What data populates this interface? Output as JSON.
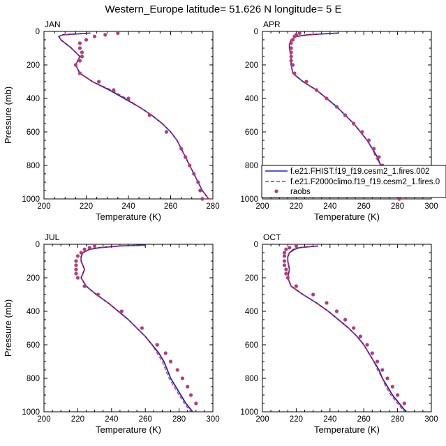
{
  "figure": {
    "title": "Western_Europe  latitude= 51.626 N longitude= 5 E"
  },
  "legend": {
    "entries": [
      {
        "label": "f.e21.FHIST.f19_f19.cesm2_1.fires.002",
        "color": "#1f1fd6",
        "style": "solid"
      },
      {
        "label": "f.e21.F2000climo.f19_f19.cesm2_1.fires.0",
        "color": "#e8231f",
        "style": "dashed"
      },
      {
        "label": "raobs",
        "color": "#b43c78",
        "style": "marker"
      }
    ]
  },
  "chart_data": [
    {
      "type": "line",
      "panel": "JAN",
      "xlabel": "Temperature (K)",
      "ylabel": "Pressure (mb)",
      "xlim": [
        200,
        280
      ],
      "ylim": [
        1000,
        0
      ],
      "xticks": [
        200,
        220,
        240,
        260,
        280
      ],
      "yticks": [
        0,
        200,
        400,
        600,
        800,
        1000
      ],
      "series": [
        {
          "key": "fhist",
          "pressure": [
            10,
            20,
            30,
            50,
            100,
            150,
            200,
            250,
            300,
            350,
            400,
            450,
            500,
            550,
            600,
            650,
            700,
            750,
            800,
            850,
            900,
            950,
            1000
          ],
          "temperature": [
            222,
            209,
            207,
            208,
            213,
            217,
            215,
            217,
            223,
            231,
            238,
            245,
            251,
            256,
            260,
            263,
            265,
            267,
            269,
            271,
            273,
            275,
            278
          ]
        },
        {
          "key": "f2000",
          "pressure": [
            10,
            20,
            30,
            50,
            100,
            150,
            200,
            250,
            300,
            350,
            400,
            450,
            500,
            550,
            600,
            650,
            700,
            750,
            800,
            850,
            900,
            950,
            1000
          ],
          "temperature": [
            222,
            209,
            207,
            208,
            213,
            217,
            215,
            217,
            223,
            232,
            239,
            245,
            251,
            256,
            260,
            263,
            265,
            267,
            269,
            271,
            273,
            275,
            278
          ]
        },
        {
          "key": "raobs",
          "pressure": [
            10,
            20,
            30,
            50,
            70,
            100,
            125,
            150,
            175,
            200,
            250,
            300,
            350,
            400,
            500,
            600,
            700,
            750,
            800,
            850,
            900,
            950,
            1000
          ],
          "temperature": [
            235,
            229,
            224,
            220,
            217,
            217,
            218,
            218,
            217,
            215,
            217,
            226,
            233,
            240,
            250,
            258,
            265,
            267,
            269,
            271,
            273,
            274,
            275
          ]
        }
      ]
    },
    {
      "type": "line",
      "panel": "APR",
      "xlabel": "Temperature (K)",
      "ylabel": "",
      "xlim": [
        200,
        300
      ],
      "ylim": [
        1000,
        0
      ],
      "xticks": [
        200,
        220,
        240,
        260,
        280,
        300
      ],
      "yticks": [
        0,
        200,
        400,
        600,
        800,
        1000
      ],
      "series": [
        {
          "key": "fhist",
          "pressure": [
            10,
            15,
            20,
            30,
            50,
            75,
            100,
            150,
            200,
            250,
            300,
            350,
            400,
            450,
            500,
            550,
            600,
            650,
            700,
            750,
            800,
            850,
            900,
            950,
            1000
          ],
          "temperature": [
            245,
            235,
            227,
            220,
            217,
            216,
            216,
            217,
            217,
            218,
            224,
            232,
            238,
            244,
            249,
            254,
            258,
            262,
            265,
            268,
            270,
            273,
            276,
            279,
            282
          ]
        },
        {
          "key": "f2000",
          "pressure": [
            10,
            15,
            20,
            30,
            50,
            75,
            100,
            150,
            200,
            250,
            300,
            350,
            400,
            450,
            500,
            550,
            600,
            650,
            700,
            750,
            800,
            850,
            900,
            950,
            1000
          ],
          "temperature": [
            244,
            234,
            226,
            220,
            217,
            216,
            216,
            217,
            217,
            218,
            224,
            232,
            238,
            244,
            249,
            254,
            258,
            262,
            265,
            267,
            270,
            272,
            275,
            278,
            281
          ]
        },
        {
          "key": "raobs",
          "pressure": [
            10,
            20,
            30,
            50,
            70,
            100,
            125,
            150,
            175,
            200,
            250,
            300,
            350,
            400,
            450,
            500,
            550,
            600,
            650,
            700,
            750,
            800,
            850,
            900,
            950,
            1000
          ],
          "temperature": [
            222,
            220,
            219,
            218,
            217,
            217,
            217,
            217,
            217,
            218,
            219,
            226,
            232,
            238,
            244,
            249,
            254,
            259,
            263,
            266,
            269,
            271,
            273,
            276,
            279,
            281
          ]
        }
      ]
    },
    {
      "type": "line",
      "panel": "JUL",
      "xlabel": "Temperature (K)",
      "ylabel": "Pressure (mb)",
      "xlim": [
        200,
        300
      ],
      "ylim": [
        1000,
        0
      ],
      "xticks": [
        200,
        220,
        240,
        260,
        280,
        300
      ],
      "yticks": [
        0,
        200,
        400,
        600,
        800,
        1000
      ],
      "series": [
        {
          "key": "fhist",
          "pressure": [
            5,
            10,
            20,
            30,
            50,
            75,
            100,
            150,
            200,
            250,
            300,
            350,
            400,
            450,
            500,
            550,
            600,
            650,
            700,
            750,
            800,
            850,
            900,
            950,
            1000
          ],
          "temperature": [
            260,
            245,
            233,
            227,
            223,
            222,
            222,
            224,
            222,
            225,
            231,
            238,
            244,
            250,
            255,
            260,
            264,
            268,
            271,
            273,
            275,
            278,
            281,
            284,
            288
          ]
        },
        {
          "key": "f2000",
          "pressure": [
            5,
            10,
            20,
            30,
            50,
            75,
            100,
            150,
            200,
            250,
            300,
            350,
            400,
            450,
            500,
            550,
            600,
            650,
            700,
            750,
            800,
            850,
            900,
            950,
            1000
          ],
          "temperature": [
            259,
            244,
            232,
            227,
            223,
            222,
            222,
            224,
            222,
            225,
            231,
            238,
            244,
            250,
            255,
            260,
            264,
            267,
            270,
            272,
            274,
            277,
            280,
            283,
            287
          ]
        },
        {
          "key": "raobs",
          "pressure": [
            10,
            20,
            30,
            50,
            70,
            100,
            125,
            150,
            175,
            200,
            250,
            300,
            400,
            500,
            600,
            650,
            700,
            750,
            800,
            850,
            900,
            950
          ],
          "temperature": [
            230,
            227,
            224,
            222,
            220,
            219,
            219,
            219,
            219,
            220,
            224,
            232,
            246,
            258,
            267,
            272,
            275,
            279,
            282,
            285,
            287,
            290
          ]
        }
      ]
    },
    {
      "type": "line",
      "panel": "OCT",
      "xlabel": "Temperature (K)",
      "ylabel": "",
      "xlim": [
        200,
        300
      ],
      "ylim": [
        1000,
        0
      ],
      "xticks": [
        200,
        220,
        240,
        260,
        280,
        300
      ],
      "yticks": [
        0,
        200,
        400,
        600,
        800,
        1000
      ],
      "series": [
        {
          "key": "fhist",
          "pressure": [
            10,
            15,
            20,
            30,
            50,
            75,
            100,
            150,
            200,
            250,
            300,
            350,
            400,
            450,
            500,
            550,
            600,
            650,
            700,
            750,
            800,
            850,
            900,
            950,
            1000
          ],
          "temperature": [
            233,
            227,
            222,
            219,
            216,
            215,
            215,
            216,
            215,
            217,
            224,
            232,
            239,
            245,
            251,
            256,
            260,
            263,
            266,
            269,
            271,
            274,
            277,
            281,
            285
          ]
        },
        {
          "key": "f2000",
          "pressure": [
            10,
            15,
            20,
            30,
            50,
            75,
            100,
            150,
            200,
            250,
            300,
            350,
            400,
            450,
            500,
            550,
            600,
            650,
            700,
            750,
            800,
            850,
            900,
            950,
            1000
          ],
          "temperature": [
            232,
            226,
            221,
            218,
            216,
            215,
            215,
            216,
            215,
            217,
            224,
            232,
            239,
            245,
            251,
            256,
            260,
            263,
            266,
            268,
            271,
            273,
            276,
            280,
            284
          ]
        },
        {
          "key": "raobs",
          "pressure": [
            10,
            20,
            30,
            50,
            70,
            100,
            125,
            150,
            175,
            200,
            250,
            300,
            350,
            400,
            450,
            500,
            550,
            600,
            650,
            700,
            750,
            800,
            850,
            900,
            950
          ],
          "temperature": [
            220,
            216,
            214,
            213,
            213,
            213,
            213,
            214,
            214,
            215,
            220,
            230,
            238,
            244,
            249,
            254,
            258,
            262,
            265,
            268,
            271,
            274,
            277,
            280,
            284
          ]
        }
      ]
    }
  ]
}
